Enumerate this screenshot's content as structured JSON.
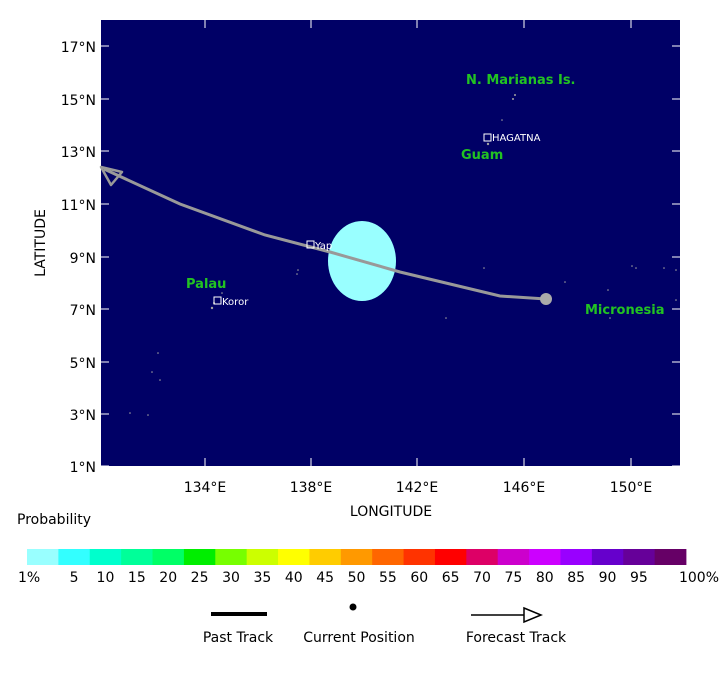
{
  "map": {
    "x_axis_label": "LONGITUDE",
    "y_axis_label": "LATITUDE",
    "lat_ticks": [
      "1°N",
      "3°N",
      "5°N",
      "7°N",
      "9°N",
      "11°N",
      "13°N",
      "15°N",
      "17°N"
    ],
    "lon_ticks": [
      "134°E",
      "138°E",
      "142°E",
      "146°E",
      "150°E"
    ],
    "regions": [
      "N. Marianas Is.",
      "Guam",
      "Palau",
      "Micronesia"
    ],
    "cities": [
      "HAGATNA",
      "Yap",
      "Koror"
    ],
    "colors": {
      "ocean": "#000066",
      "land_label": "#22c322",
      "track": "#999999",
      "probability_area": "#99ffff"
    }
  },
  "legend": {
    "probability_title": "Probability",
    "scale": [
      {
        "label": "1%",
        "color": "#99ffff"
      },
      {
        "label": "5",
        "color": "#33ffff"
      },
      {
        "label": "10",
        "color": "#00ffcc"
      },
      {
        "label": "15",
        "color": "#00ff99"
      },
      {
        "label": "20",
        "color": "#00ff66"
      },
      {
        "label": "25",
        "color": "#00ee00"
      },
      {
        "label": "30",
        "color": "#77ff00"
      },
      {
        "label": "35",
        "color": "#ccff00"
      },
      {
        "label": "40",
        "color": "#ffff00"
      },
      {
        "label": "45",
        "color": "#ffcc00"
      },
      {
        "label": "50",
        "color": "#ff9900"
      },
      {
        "label": "55",
        "color": "#ff6600"
      },
      {
        "label": "60",
        "color": "#ff3300"
      },
      {
        "label": "65",
        "color": "#ff0000"
      },
      {
        "label": "70",
        "color": "#dd0066"
      },
      {
        "label": "75",
        "color": "#cc00cc"
      },
      {
        "label": "80",
        "color": "#cc00ff"
      },
      {
        "label": "85",
        "color": "#9900ff"
      },
      {
        "label": "90",
        "color": "#6600cc"
      },
      {
        "label": "95",
        "color": "#660099"
      },
      {
        "label": "100%",
        "color": "#660066"
      }
    ],
    "symbols": {
      "past_track": "Past Track",
      "current_position": "Current Position",
      "forecast_track": "Forecast Track"
    }
  }
}
